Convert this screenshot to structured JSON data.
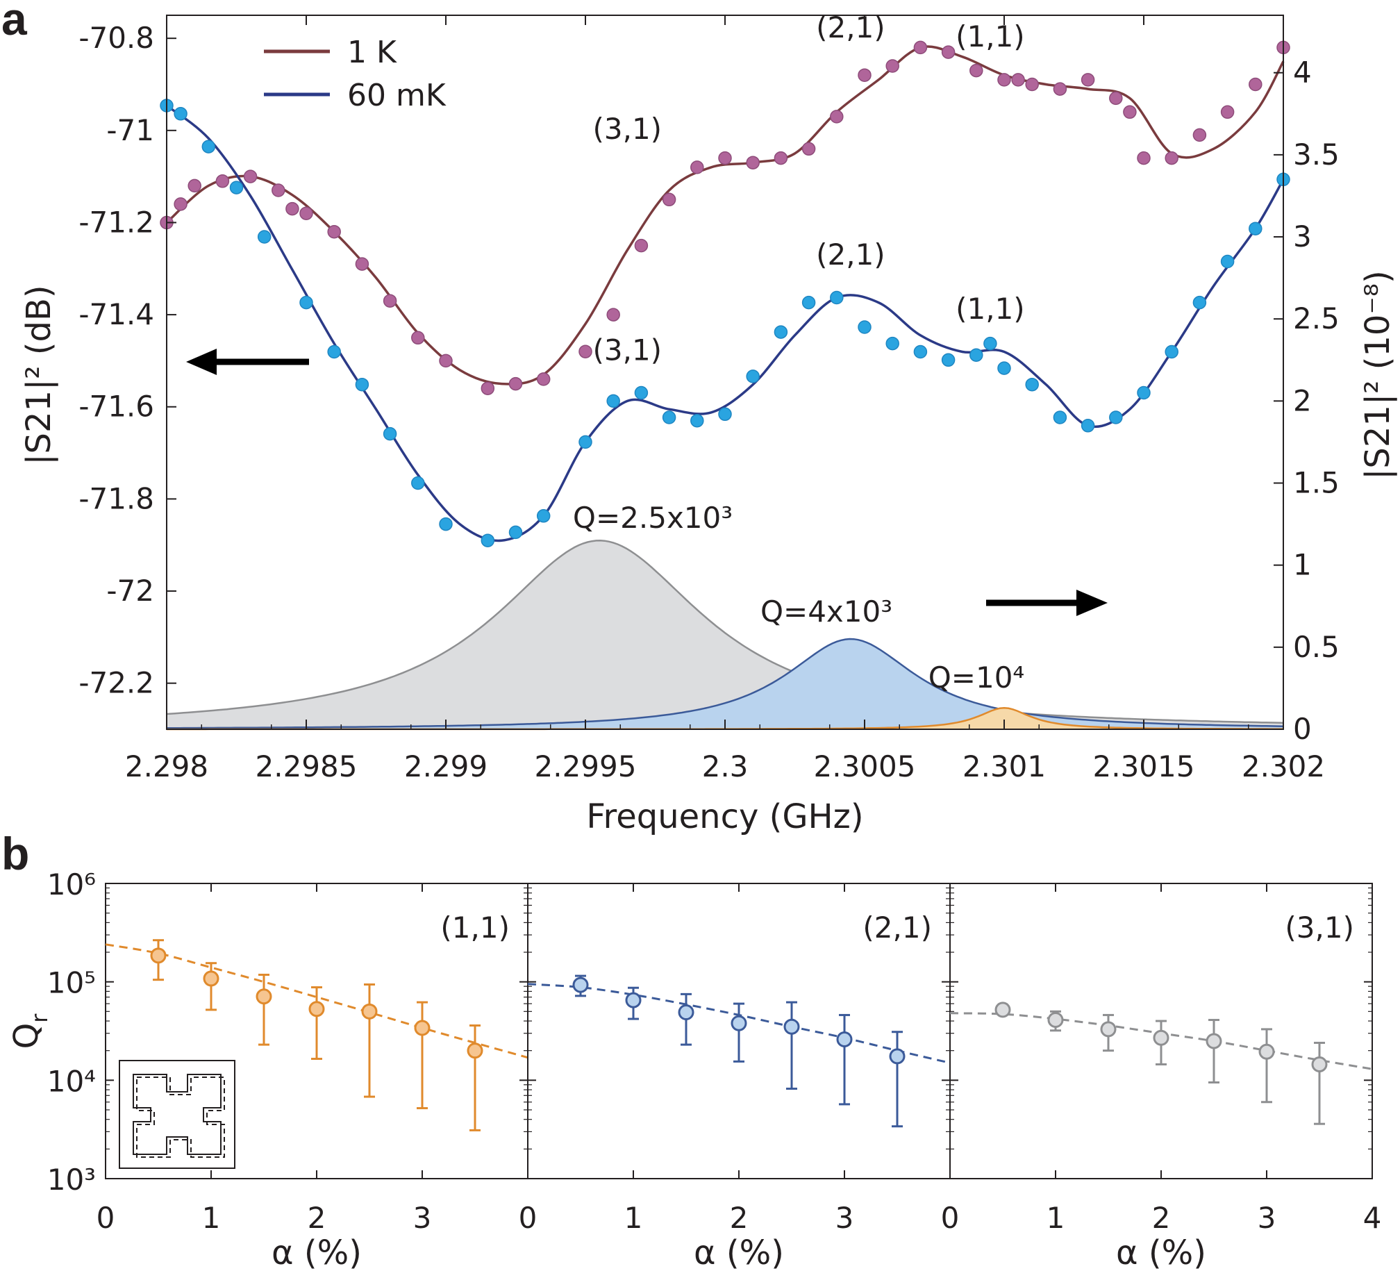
{
  "chart_data": [
    {
      "panel": "a",
      "type": "line",
      "xlabel": "Frequency (GHz)",
      "ylabel_left": "|S21|² (dB)",
      "ylabel_right": "|S21|² (10⁻⁸)",
      "xlim": [
        2.298,
        2.302
      ],
      "ylim_left": [
        -72.3,
        -70.75
      ],
      "ylim_right": [
        0,
        4.35
      ],
      "x_ticks": [
        "2.298",
        "2.2985",
        "2.299",
        "2.2995",
        "2.3",
        "2.3005",
        "2.301",
        "2.3015",
        "2.302"
      ],
      "y_left_ticks": [
        "-70.8",
        "-71",
        "-71.2",
        "-71.4",
        "-71.6",
        "-71.8",
        "-72",
        "-72.2"
      ],
      "y_right_ticks": [
        "4",
        "3.5",
        "3",
        "2.5",
        "2",
        "1.5",
        "1",
        "0.5",
        "0"
      ],
      "legend_position": "top-left",
      "series": [
        {
          "name": "1 K",
          "axis": "left",
          "color": "#7a3b3e",
          "marker_color": "#b0659a",
          "fit_x": [
            2.298,
            2.29815,
            2.2983,
            2.29845,
            2.2986,
            2.29875,
            2.2989,
            2.29905,
            2.2992,
            2.29935,
            2.2995,
            2.29965,
            2.2998,
            2.29995,
            2.3001,
            2.30025,
            2.3004,
            2.30055,
            2.3007,
            2.30085,
            2.301,
            2.30115,
            2.3013,
            2.30145,
            2.3016,
            2.30175,
            2.3019,
            2.302
          ],
          "fit_y": [
            -71.2,
            -71.12,
            -71.1,
            -71.14,
            -71.22,
            -71.32,
            -71.44,
            -71.52,
            -71.55,
            -71.53,
            -71.42,
            -71.26,
            -71.13,
            -71.08,
            -71.07,
            -71.05,
            -70.96,
            -70.89,
            -70.82,
            -70.84,
            -70.88,
            -70.9,
            -70.91,
            -70.93,
            -71.05,
            -71.04,
            -70.96,
            -70.85
          ],
          "points_x": [
            2.298,
            2.29805,
            2.2981,
            2.2982,
            2.2983,
            2.2984,
            2.29845,
            2.2985,
            2.2986,
            2.2987,
            2.2988,
            2.2989,
            2.299,
            2.29915,
            2.29925,
            2.29935,
            2.2995,
            2.2996,
            2.2997,
            2.2998,
            2.2999,
            2.3,
            2.3001,
            2.3002,
            2.3003,
            2.3004,
            2.3005,
            2.3006,
            2.3007,
            2.3008,
            2.3009,
            2.301,
            2.30105,
            2.3011,
            2.3012,
            2.3013,
            2.3014,
            2.30145,
            2.3015,
            2.3016,
            2.3017,
            2.3018,
            2.3019,
            2.302
          ],
          "points_y": [
            -71.2,
            -71.16,
            -71.12,
            -71.11,
            -71.1,
            -71.13,
            -71.17,
            -71.18,
            -71.22,
            -71.29,
            -71.37,
            -71.45,
            -71.5,
            -71.56,
            -71.55,
            -71.54,
            -71.48,
            -71.4,
            -71.25,
            -71.15,
            -71.08,
            -71.06,
            -71.07,
            -71.06,
            -71.04,
            -70.97,
            -70.88,
            -70.86,
            -70.82,
            -70.83,
            -70.87,
            -70.89,
            -70.89,
            -70.9,
            -70.91,
            -70.89,
            -70.93,
            -70.96,
            -71.06,
            -71.06,
            -71.01,
            -70.96,
            -70.9,
            -70.82
          ],
          "peak_labels": [
            {
              "text": "(3,1)",
              "x": 2.29965,
              "y": -71.0
            },
            {
              "text": "(2,1)",
              "x": 2.30045,
              "y": -70.78
            },
            {
              "text": "(1,1)",
              "x": 2.30095,
              "y": -70.8
            }
          ]
        },
        {
          "name": "60 mK",
          "axis": "right",
          "color": "#2b3a87",
          "marker_color": "#2aa4e0",
          "fit_x": [
            2.298,
            2.29815,
            2.2983,
            2.29845,
            2.2986,
            2.29875,
            2.2989,
            2.29905,
            2.2992,
            2.29935,
            2.2995,
            2.29965,
            2.2998,
            2.29995,
            2.3001,
            2.30025,
            2.3004,
            2.30055,
            2.3007,
            2.30085,
            2.301,
            2.30115,
            2.3013,
            2.30145,
            2.3016,
            2.30175,
            2.3019,
            2.302
          ],
          "fit_y": [
            3.8,
            3.6,
            3.25,
            2.8,
            2.35,
            1.95,
            1.55,
            1.25,
            1.15,
            1.3,
            1.75,
            2.0,
            1.95,
            1.93,
            2.1,
            2.4,
            2.63,
            2.6,
            2.4,
            2.3,
            2.3,
            2.1,
            1.85,
            1.95,
            2.3,
            2.7,
            3.05,
            3.35
          ],
          "points_x": [
            2.298,
            2.29805,
            2.29815,
            2.29825,
            2.29835,
            2.2985,
            2.2986,
            2.2987,
            2.2988,
            2.2989,
            2.299,
            2.29915,
            2.29925,
            2.29935,
            2.2995,
            2.2996,
            2.2997,
            2.2998,
            2.2999,
            2.3,
            2.3001,
            2.3002,
            2.3003,
            2.3004,
            2.3005,
            2.3006,
            2.3007,
            2.3008,
            2.3009,
            2.30095,
            2.301,
            2.3011,
            2.3012,
            2.3013,
            2.3014,
            2.3015,
            2.3016,
            2.3017,
            2.3018,
            2.3019,
            2.302
          ],
          "points_y": [
            3.8,
            3.75,
            3.55,
            3.3,
            3.0,
            2.6,
            2.3,
            2.1,
            1.8,
            1.5,
            1.25,
            1.15,
            1.2,
            1.3,
            1.75,
            2.0,
            2.05,
            1.9,
            1.88,
            1.92,
            2.15,
            2.42,
            2.6,
            2.63,
            2.45,
            2.35,
            2.3,
            2.25,
            2.28,
            2.35,
            2.2,
            2.1,
            1.9,
            1.85,
            1.9,
            2.05,
            2.3,
            2.6,
            2.85,
            3.05,
            3.35
          ]
        }
      ],
      "peak_labels_60mK": [
        {
          "text": "(3,1)",
          "x": 2.29965,
          "y_right": 2.25
        },
        {
          "text": "(2,1)",
          "x": 2.30045,
          "y_right": 2.83
        },
        {
          "text": "(1,1)",
          "x": 2.30095,
          "y_right": 2.5
        }
      ],
      "lorentzians": [
        {
          "label": "Q=2.5x10³",
          "center": 2.29955,
          "q": 2500,
          "peak_right": 1.15,
          "fill": "#dcdddf",
          "stroke": "#8e8f91"
        },
        {
          "label": "Q=4x10³",
          "center": 2.30045,
          "q": 4000,
          "peak_right": 0.55,
          "fill": "#b9d3ee",
          "stroke": "#3b5a99"
        },
        {
          "label": "Q=10⁴",
          "center": 2.301,
          "q": 10000,
          "peak_right": 0.13,
          "fill": "#f6d9a9",
          "stroke": "#e08a2c"
        }
      ]
    },
    {
      "panel": "b",
      "type": "scatter",
      "ylabel": "Q_r",
      "y_log": true,
      "ylim": [
        1000,
        1000000
      ],
      "y_ticks": [
        "10³",
        "10⁴",
        "10⁵",
        "10⁶"
      ],
      "xlabel": "α (%)",
      "subpanels": [
        {
          "title": "(1,1)",
          "color": "#e08a2c",
          "fill": "#f6c590",
          "xlim": [
            0,
            4
          ],
          "x_ticks": [
            "0",
            "1",
            "2",
            "3"
          ],
          "x": [
            0.5,
            1,
            1.5,
            2,
            2.5,
            3,
            3.5
          ],
          "y": [
            185000,
            108000,
            71000,
            53000,
            50000,
            34000,
            20000
          ],
          "err_low": [
            105000,
            52000,
            23000,
            16500,
            6800,
            5200,
            3100
          ],
          "err_high": [
            265000,
            155000,
            118000,
            88000,
            94000,
            62000,
            36000
          ],
          "fit": [
            [
              0,
              240000
            ],
            [
              0.5,
              195000
            ],
            [
              1,
              140000
            ],
            [
              1.5,
              100000
            ],
            [
              2,
              70000
            ],
            [
              2.5,
              49000
            ],
            [
              3,
              34000
            ],
            [
              3.5,
              24000
            ],
            [
              4,
              17000
            ]
          ]
        },
        {
          "title": "(2,1)",
          "color": "#3b5a99",
          "fill": "#b9d3ee",
          "xlim": [
            0,
            4
          ],
          "x_ticks": [
            "0",
            "1",
            "2",
            "3"
          ],
          "x": [
            0.5,
            1,
            1.5,
            2,
            2.5,
            3,
            3.5
          ],
          "y": [
            93000,
            65000,
            49000,
            38000,
            35000,
            26000,
            17500
          ],
          "err_low": [
            72000,
            42000,
            23000,
            15500,
            8200,
            5700,
            3400
          ],
          "err_high": [
            115000,
            87000,
            75000,
            60000,
            62000,
            46000,
            31000
          ],
          "fit": [
            [
              0,
              95000
            ],
            [
              0.5,
              88000
            ],
            [
              1,
              74000
            ],
            [
              1.5,
              59000
            ],
            [
              2,
              46000
            ],
            [
              2.5,
              35000
            ],
            [
              3,
              27000
            ],
            [
              3.5,
              20000
            ],
            [
              4,
              15000
            ]
          ]
        },
        {
          "title": "(3,1)",
          "color": "#8e8f91",
          "fill": "#dcdddf",
          "xlim": [
            0,
            4
          ],
          "x_ticks": [
            "0",
            "1",
            "2",
            "3",
            "4"
          ],
          "x": [
            0.5,
            1,
            1.5,
            2,
            2.5,
            3,
            3.5
          ],
          "y": [
            52000,
            41000,
            33000,
            27000,
            25000,
            19500,
            14500
          ],
          "err_low": [
            49000,
            32000,
            20000,
            14500,
            9500,
            6000,
            3600
          ],
          "err_high": [
            55000,
            50000,
            46000,
            40000,
            41000,
            33000,
            24000
          ],
          "fit": [
            [
              0,
              48000
            ],
            [
              0.5,
              47000
            ],
            [
              1,
              42000
            ],
            [
              1.5,
              36000
            ],
            [
              2,
              30000
            ],
            [
              2.5,
              25000
            ],
            [
              3,
              20000
            ],
            [
              3.5,
              16000
            ],
            [
              4,
              13000
            ]
          ]
        }
      ]
    }
  ],
  "labels": {
    "panel_a": "a",
    "panel_b": "b",
    "legend_1k": "1 K",
    "legend_60mk": "60 mK",
    "xlabel_a": "Frequency (GHz)",
    "ylabel_b": "Q",
    "ylabel_b_sub": "r",
    "xlabel_b": "α (%)"
  }
}
